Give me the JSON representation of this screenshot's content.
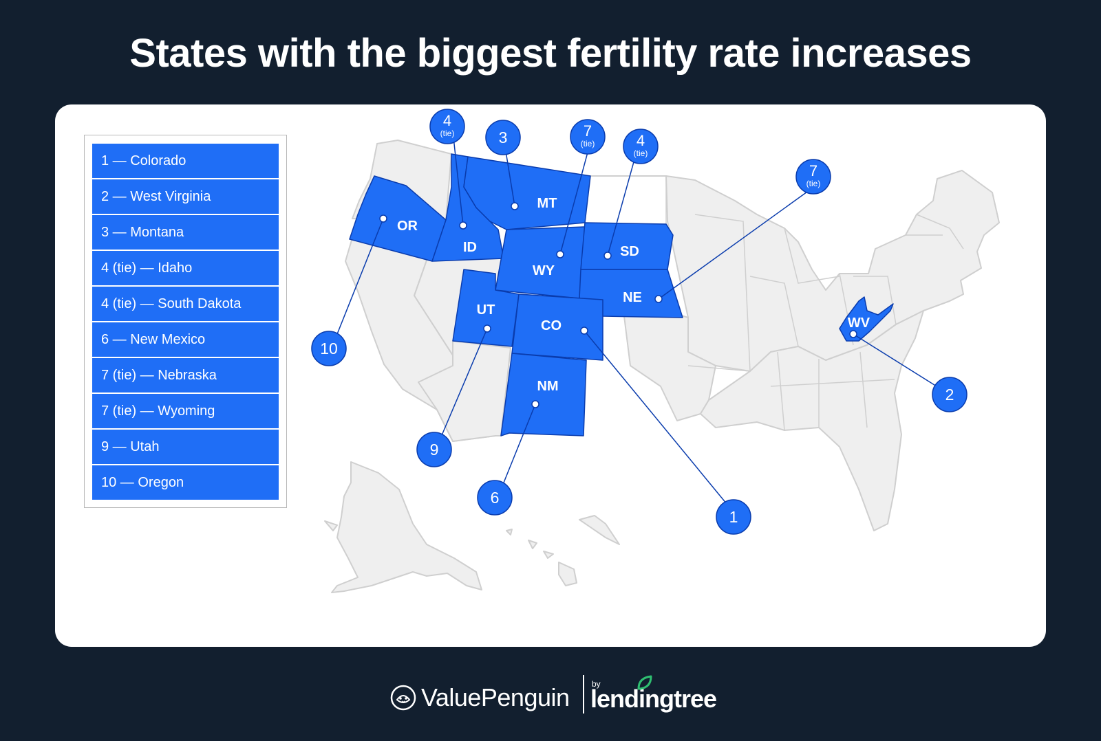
{
  "title": "States with the biggest fertility rate increases",
  "legend": {
    "items": [
      "1 — Colorado",
      "2 — West Virginia",
      "3 — Montana",
      "4 (tie) — Idaho",
      "4 (tie) — South Dakota",
      "6 — New Mexico",
      "7 (tie) — Nebraska",
      "7 (tie) — Wyoming",
      "9 — Utah",
      "10 — Oregon"
    ]
  },
  "map": {
    "highlight_color": "#1f6ef6",
    "base_color": "#efefef",
    "state_labels": {
      "or": "OR",
      "id": "ID",
      "mt": "MT",
      "wy": "WY",
      "sd": "SD",
      "ne": "NE",
      "ut": "UT",
      "co": "CO",
      "nm": "NM",
      "wv": "WV"
    },
    "callouts": {
      "co": {
        "rank": "1",
        "tie": ""
      },
      "wv": {
        "rank": "2",
        "tie": ""
      },
      "mt": {
        "rank": "3",
        "tie": ""
      },
      "id": {
        "rank": "4",
        "tie": "(tie)"
      },
      "sd": {
        "rank": "4",
        "tie": "(tie)"
      },
      "nm": {
        "rank": "6",
        "tie": ""
      },
      "ne": {
        "rank": "7",
        "tie": "(tie)"
      },
      "wy": {
        "rank": "7",
        "tie": "(tie)"
      },
      "ut": {
        "rank": "9",
        "tie": ""
      },
      "or": {
        "rank": "10",
        "tie": ""
      }
    }
  },
  "footer": {
    "brand": "ValuePenguin",
    "by": "by",
    "partner": "lendingtree",
    "brand_icon": "penguin-icon",
    "partner_icon": "leaf-icon"
  }
}
